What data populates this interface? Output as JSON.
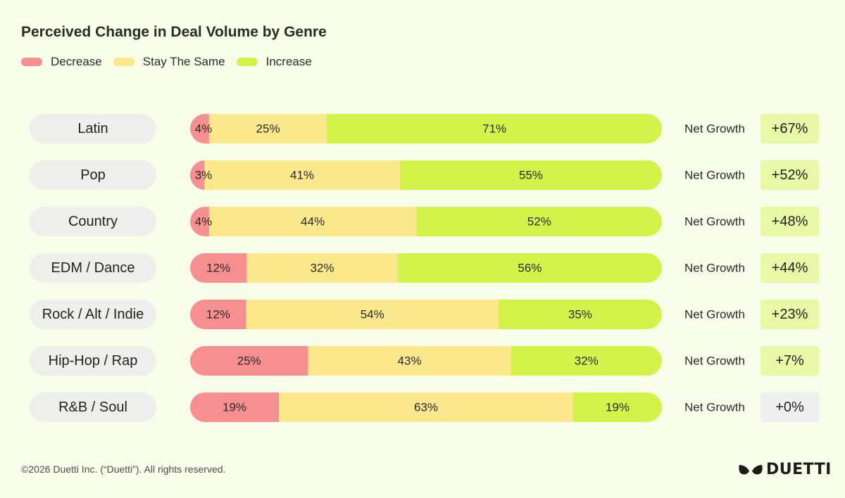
{
  "title": "Perceived Change in Deal Volume by Genre",
  "legend": [
    {
      "label": "Decrease",
      "color": "#f69090"
    },
    {
      "label": "Stay The Same",
      "color": "#fbe78c"
    },
    {
      "label": "Increase",
      "color": "#d4f34a"
    }
  ],
  "net_growth_label": "Net Growth",
  "footer": "©2026 Duetti Inc. (“Duetti”). All rights reserved.",
  "brand": "DUETTI",
  "colors": {
    "decrease": "#f69090",
    "same": "#fbe78c",
    "increase": "#d4f34a",
    "badge_positive": "#e8f8a6",
    "badge_neutral": "#efefef",
    "genre_pill": "#eeeeec"
  },
  "chart_data": {
    "type": "bar",
    "orientation": "horizontal",
    "stacked": true,
    "title": "Perceived Change in Deal Volume by Genre",
    "categories": [
      "Latin",
      "Pop",
      "Country",
      "EDM / Dance",
      "Rock / Alt / Indie",
      "Hip-Hop / Rap",
      "R&B / Soul"
    ],
    "series": [
      {
        "name": "Decrease",
        "values": [
          4,
          3,
          4,
          12,
          12,
          25,
          19
        ]
      },
      {
        "name": "Stay The Same",
        "values": [
          25,
          41,
          44,
          32,
          54,
          43,
          63
        ]
      },
      {
        "name": "Increase",
        "values": [
          71,
          55,
          52,
          56,
          35,
          32,
          19
        ]
      }
    ],
    "value_labels": {
      "Decrease": [
        "4%",
        "3%",
        "4%",
        "12%",
        "12%",
        "25%",
        "19%"
      ],
      "Stay The Same": [
        "25%",
        "41%",
        "44%",
        "32%",
        "54%",
        "43%",
        "63%"
      ],
      "Increase": [
        "71%",
        "55%",
        "52%",
        "56%",
        "35%",
        "32%",
        "19%"
      ]
    },
    "net_growth": [
      "+67%",
      "+52%",
      "+48%",
      "+44%",
      "+23%",
      "+7%",
      "+0%"
    ],
    "xlim": [
      0,
      100
    ],
    "legend_position": "top-left",
    "grid": false
  }
}
